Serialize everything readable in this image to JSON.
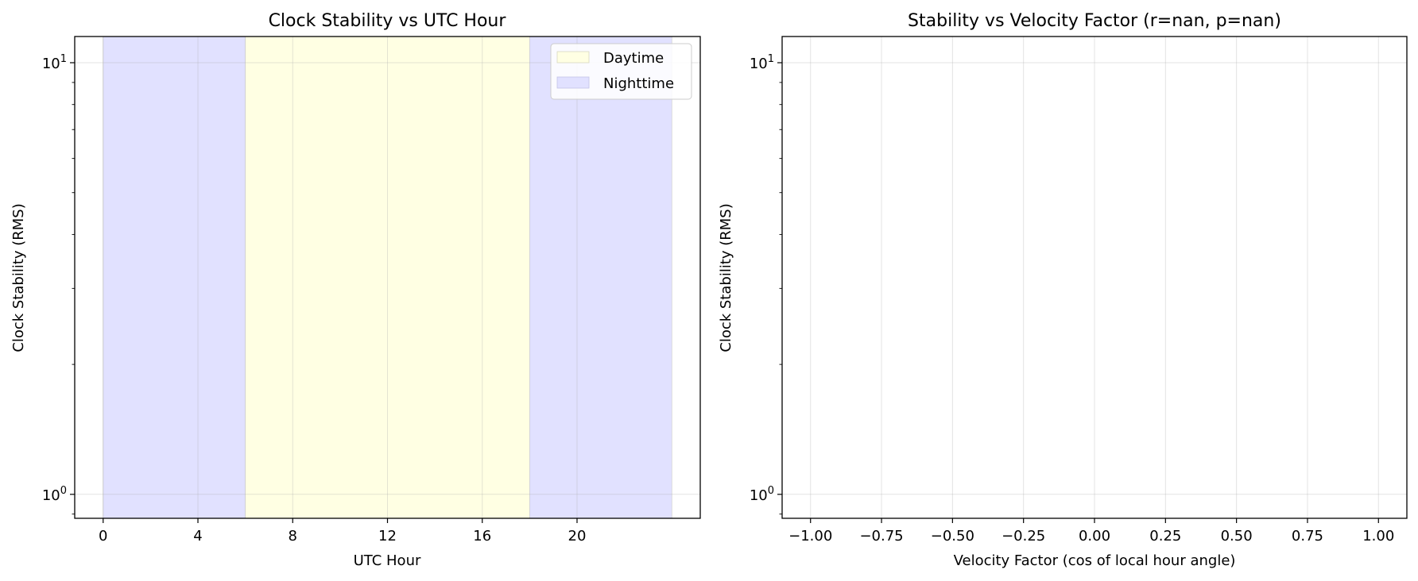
{
  "chart_data": [
    {
      "type": "area",
      "title": "Clock Stability vs UTC Hour",
      "xlabel": "UTC Hour",
      "ylabel": "Clock Stability (RMS)",
      "yscale": "log",
      "xlim": [
        -1.2,
        25.2
      ],
      "ylim": [
        0.88,
        11.5
      ],
      "xticks": [
        0,
        4,
        8,
        12,
        16,
        20
      ],
      "xtick_labels": [
        "0",
        "4",
        "8",
        "12",
        "16",
        "20"
      ],
      "yticks": [
        1,
        10
      ],
      "ytick_labels": [
        {
          "base": "10",
          "exp": "0"
        },
        {
          "base": "10",
          "exp": "1"
        }
      ],
      "grid": true,
      "legend": {
        "placement": "top-right",
        "entries": [
          "Daytime",
          "Nighttime"
        ]
      },
      "spans": [
        {
          "name": "Nighttime",
          "x": [
            0,
            6
          ],
          "color": "#e1e1ff"
        },
        {
          "name": "Daytime",
          "x": [
            6,
            18
          ],
          "color": "#ffffe3"
        },
        {
          "name": "Nighttime",
          "x": [
            18,
            24
          ],
          "color": "#e1e1ff"
        }
      ],
      "legend_colors": {
        "Daytime": "#ffffe3",
        "Nighttime": "#e1e1ff"
      },
      "series": []
    },
    {
      "type": "scatter",
      "title": "Stability vs Velocity Factor (r=nan, p=nan)",
      "xlabel": "Velocity Factor (cos of local hour angle)",
      "ylabel": "Clock Stability (RMS)",
      "yscale": "log",
      "xlim": [
        -1.1,
        1.1
      ],
      "ylim": [
        0.88,
        11.5
      ],
      "xticks": [
        -1.0,
        -0.75,
        -0.5,
        -0.25,
        0.0,
        0.25,
        0.5,
        0.75,
        1.0
      ],
      "xtick_labels": [
        "−1.00",
        "−0.75",
        "−0.50",
        "−0.25",
        "0.00",
        "0.25",
        "0.50",
        "0.75",
        "1.00"
      ],
      "yticks": [
        1,
        10
      ],
      "ytick_labels": [
        {
          "base": "10",
          "exp": "0"
        },
        {
          "base": "10",
          "exp": "1"
        }
      ],
      "grid": true,
      "series": []
    }
  ]
}
